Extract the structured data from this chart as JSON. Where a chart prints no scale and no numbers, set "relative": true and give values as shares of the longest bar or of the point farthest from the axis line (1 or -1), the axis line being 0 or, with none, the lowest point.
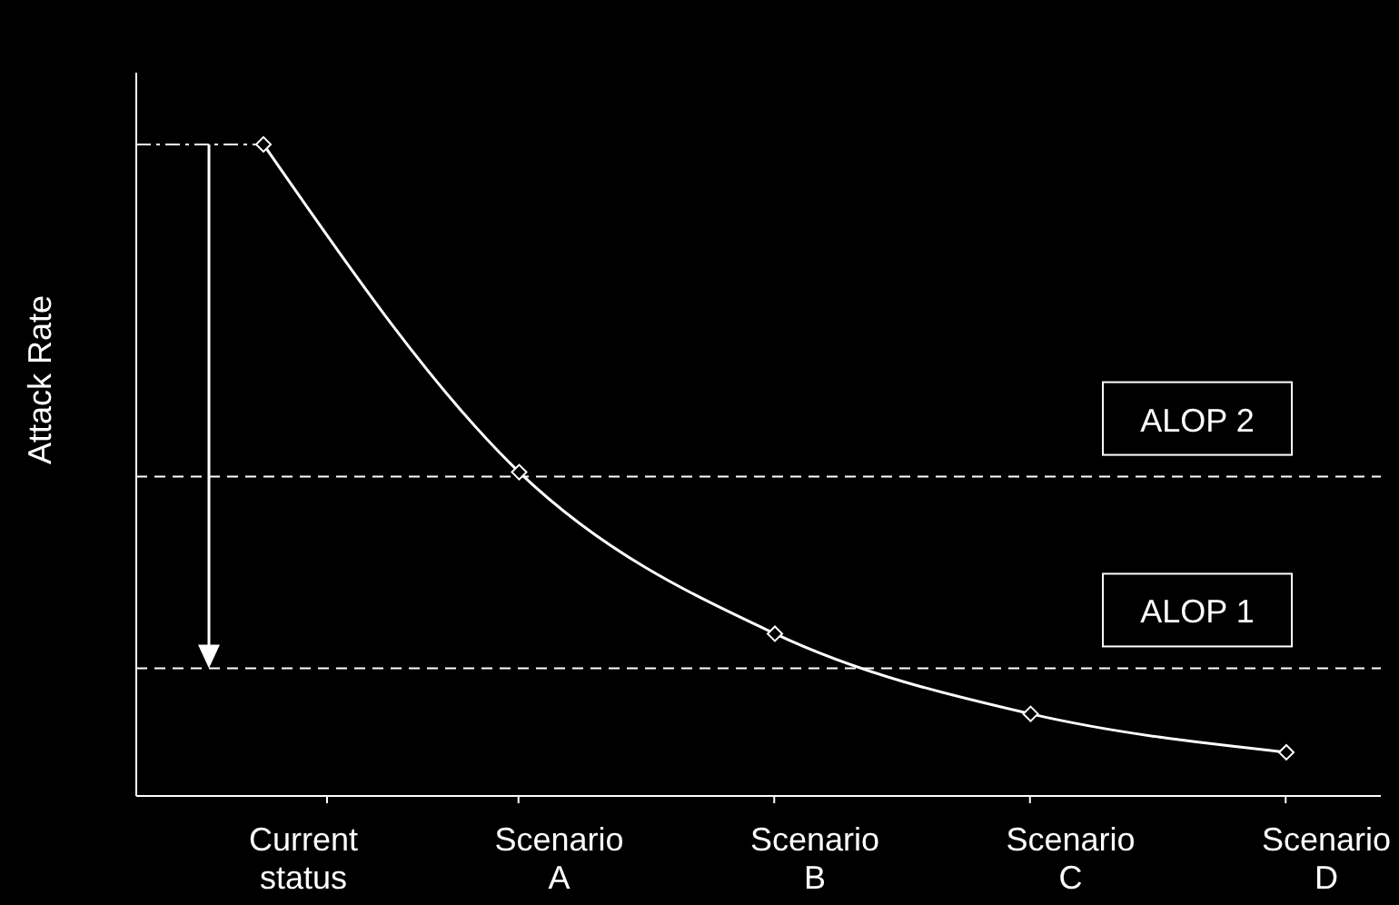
{
  "chart_data": {
    "type": "line",
    "relative": true,
    "ylabel": "Attack Rate",
    "categories": [
      "Current status",
      "Scenario A",
      "Scenario B",
      "Scenario C",
      "Scenario D"
    ],
    "series": [
      {
        "color": "#ffffff",
        "values": [
          1,
          0.497,
          0.249,
          0.126,
          0.067
        ]
      }
    ],
    "marker": "diamond",
    "line_style": "solid",
    "ref_lines": [
      {
        "axis": "y",
        "value": 0.49,
        "label": "ALOP 2",
        "color": "#ffffff",
        "line_style": "dashed"
      },
      {
        "axis": "y",
        "value": 0.196,
        "label": "ALOP 1",
        "color": "#ffffff",
        "line_style": "dashed"
      }
    ]
  }
}
